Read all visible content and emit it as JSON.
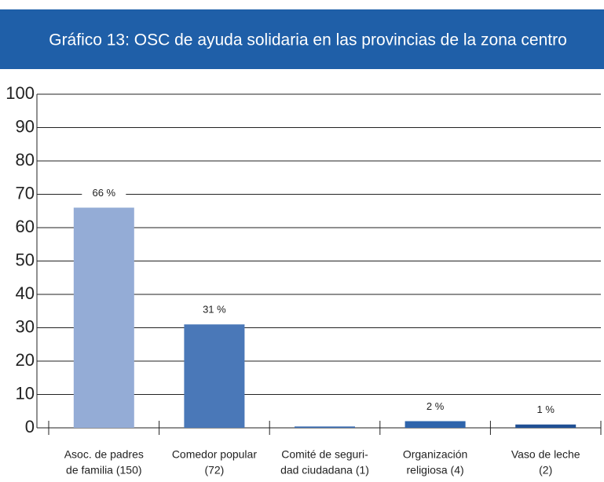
{
  "chart_data": {
    "type": "bar",
    "title": "Gráfico 13: OSC de ayuda solidaria en las provincias de la zona centro",
    "categories": [
      [
        "Asoc. de padres",
        "de familia (150)"
      ],
      [
        "Comedor popular",
        "(72)"
      ],
      [
        "Comité de seguri-",
        "dad ciudadana (1)"
      ],
      [
        "Organización",
        "religiosa (4)"
      ],
      [
        "Vaso de leche",
        "(2)"
      ]
    ],
    "values": [
      66,
      31,
      0.4,
      2,
      1
    ],
    "value_labels": [
      "66 %",
      "31 %",
      null,
      "2 %",
      "1 %"
    ],
    "colors": [
      "#94acd6",
      "#4a78b8",
      "#3a6cb0",
      "#2e64ab",
      "#1f4f94"
    ],
    "ylim": [
      0,
      100
    ],
    "yticks": [
      0,
      10,
      20,
      30,
      40,
      50,
      60,
      70,
      80,
      90,
      100
    ],
    "grid": true
  }
}
